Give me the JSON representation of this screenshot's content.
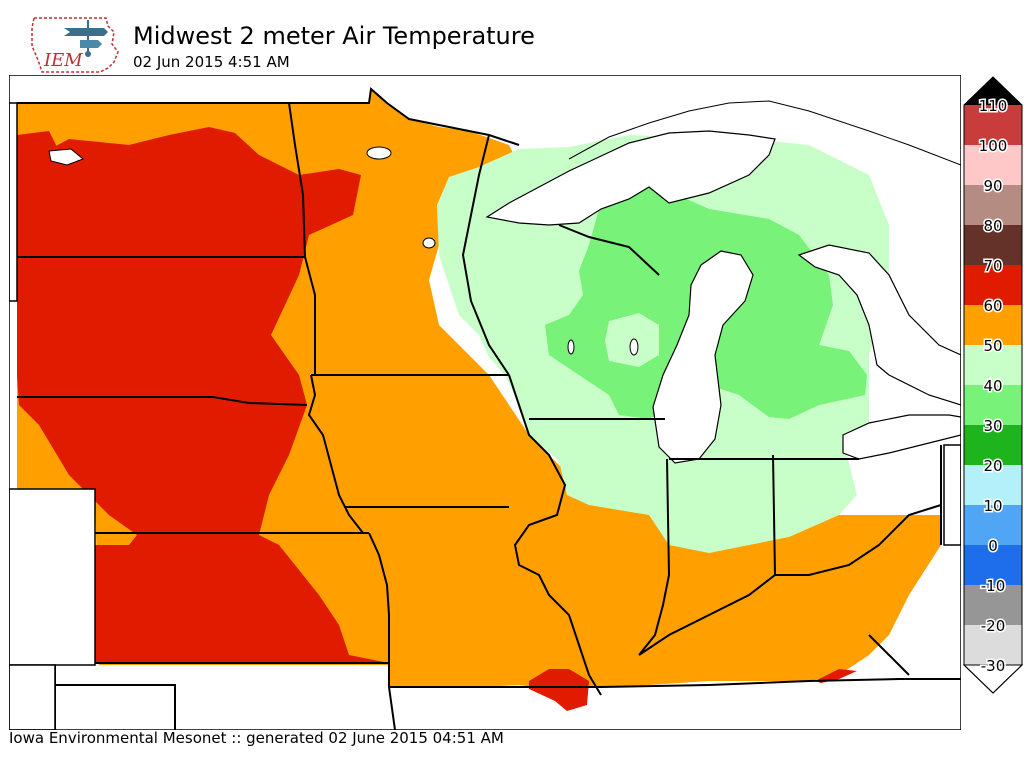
{
  "header": {
    "title": "Midwest 2 meter Air Temperature",
    "subtitle": "02 Jun 2015 4:51 AM",
    "logo_text": "IEM"
  },
  "footer": {
    "credit": "Iowa Environmental Mesonet :: generated 02 June 2015 04:51 AM"
  },
  "map": {
    "variable": "2 meter air temperature",
    "zones": [
      {
        "name": "west-northern-plains",
        "range": "60-70"
      },
      {
        "name": "central-midwest",
        "range": "50-60"
      },
      {
        "name": "great-lakes-area",
        "range": "40-50"
      },
      {
        "name": "michigan-wisconsin-interior",
        "range": "30-40"
      },
      {
        "name": "ozarks-southeast",
        "range": "60-70"
      }
    ],
    "colors": {
      "red": "#e01b00",
      "orange": "#ffa000",
      "light_green": "#c8ffc8",
      "green": "#78f278",
      "water": "#ffffff",
      "boundary": "#000000"
    }
  },
  "colorbar": {
    "labels": [
      "110",
      "100",
      "90",
      "80",
      "70",
      "60",
      "50",
      "40",
      "30",
      "20",
      "10",
      "0",
      "-10",
      "-20",
      "-30"
    ],
    "colors": [
      "#c83c3c",
      "#ffc8c8",
      "#b48c82",
      "#643228",
      "#e01b00",
      "#ffa000",
      "#c8ffc8",
      "#78f278",
      "#1eb41e",
      "#b4f0fa",
      "#50a5f5",
      "#1e6eeb",
      "#969696",
      "#dcdcdc"
    ],
    "top_arrow_color": "#000000",
    "bottom_arrow_color": "#ffffff"
  }
}
